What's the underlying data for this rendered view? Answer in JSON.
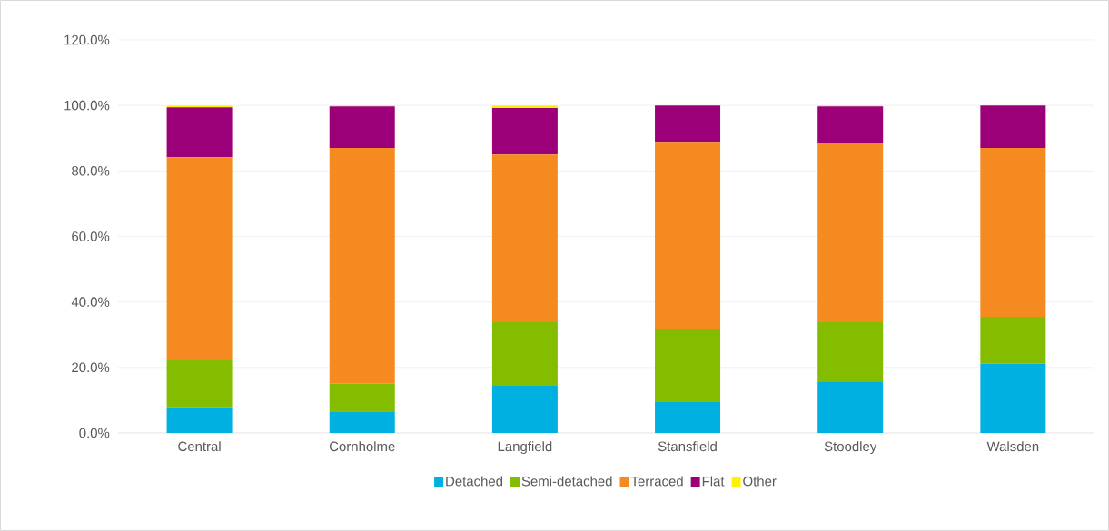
{
  "chart_data": {
    "type": "bar",
    "stacked": true,
    "categories": [
      "Central",
      "Cornholme",
      "Langfield",
      "Stansfield",
      "Stoodley",
      "Walsden"
    ],
    "series": [
      {
        "name": "Detached",
        "color": "#00b0e0",
        "values": [
          7.8,
          6.6,
          14.4,
          9.4,
          15.5,
          21.1
        ]
      },
      {
        "name": "Semi-detached",
        "color": "#84bd00",
        "values": [
          14.4,
          8.4,
          19.4,
          22.5,
          18.3,
          14.4
        ]
      },
      {
        "name": "Terraced",
        "color": "#f58b20",
        "values": [
          62.0,
          72.0,
          51.2,
          57.0,
          54.8,
          51.5
        ]
      },
      {
        "name": "Flat",
        "color": "#9c0079",
        "values": [
          15.2,
          12.7,
          14.2,
          11.1,
          11.1,
          13.0
        ]
      },
      {
        "name": "Other",
        "color": "#fff200",
        "values": [
          0.6,
          0.3,
          0.8,
          0.0,
          0.3,
          0.0
        ]
      }
    ],
    "ylim": [
      0,
      120
    ],
    "yticks": [
      {
        "value": 0,
        "label": "0.0%"
      },
      {
        "value": 20,
        "label": "20.0%"
      },
      {
        "value": 40,
        "label": "40.0%"
      },
      {
        "value": 60,
        "label": "60.0%"
      },
      {
        "value": 80,
        "label": "80.0%"
      },
      {
        "value": 100,
        "label": "100.0%"
      },
      {
        "value": 120,
        "label": "120.0%"
      }
    ],
    "grid": "y",
    "legend": "bottom"
  }
}
